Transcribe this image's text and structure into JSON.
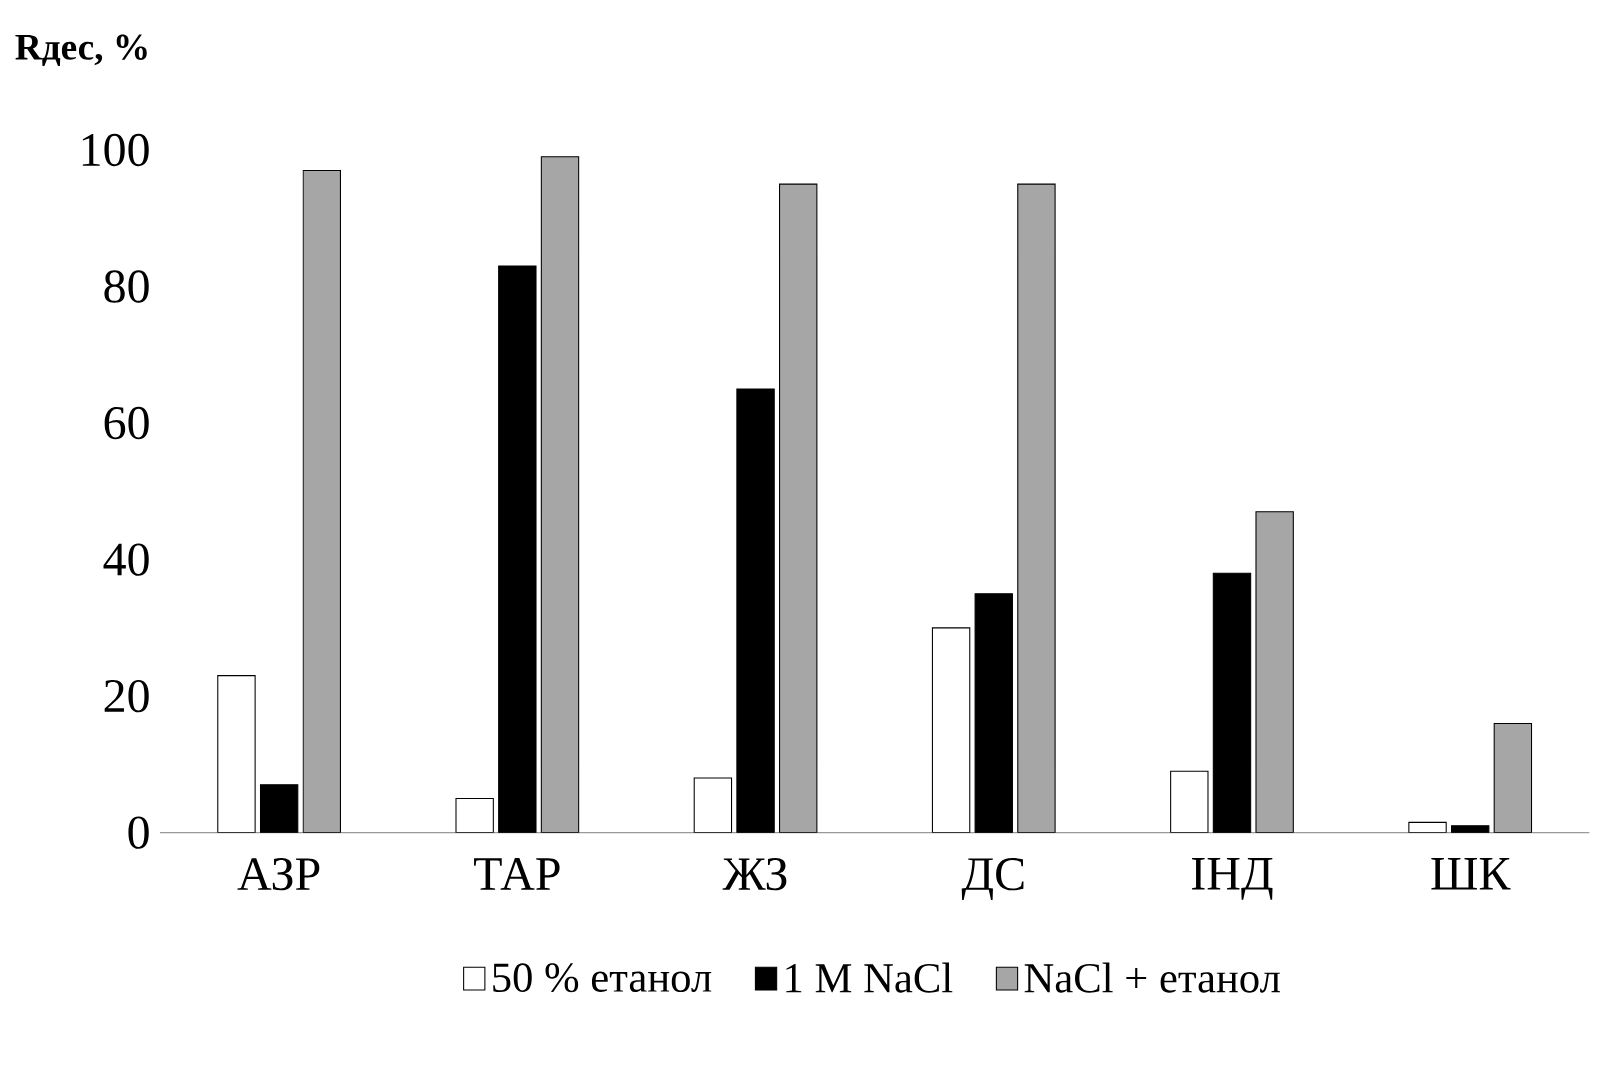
{
  "chart_data": {
    "type": "bar",
    "title": "Rдес, %",
    "categories": [
      "АЗР",
      "ТАР",
      "ЖЗ",
      "ДС",
      "ІНД",
      "ШК"
    ],
    "series": [
      {
        "name": "50 % етанол",
        "color": "#ffffff",
        "values": [
          23,
          5,
          8,
          30,
          9,
          1.5
        ]
      },
      {
        "name": "1 M NaCl",
        "color": "#000000",
        "values": [
          7,
          83,
          65,
          35,
          38,
          1
        ]
      },
      {
        "name": "NaCl + етанол",
        "color": "#a6a6a6",
        "values": [
          97,
          99,
          95,
          95,
          47,
          16
        ]
      }
    ],
    "ylim": [
      0,
      100
    ],
    "yticks": [
      0,
      20,
      40,
      60,
      80,
      100
    ],
    "grid": false,
    "legend": "bottom"
  }
}
